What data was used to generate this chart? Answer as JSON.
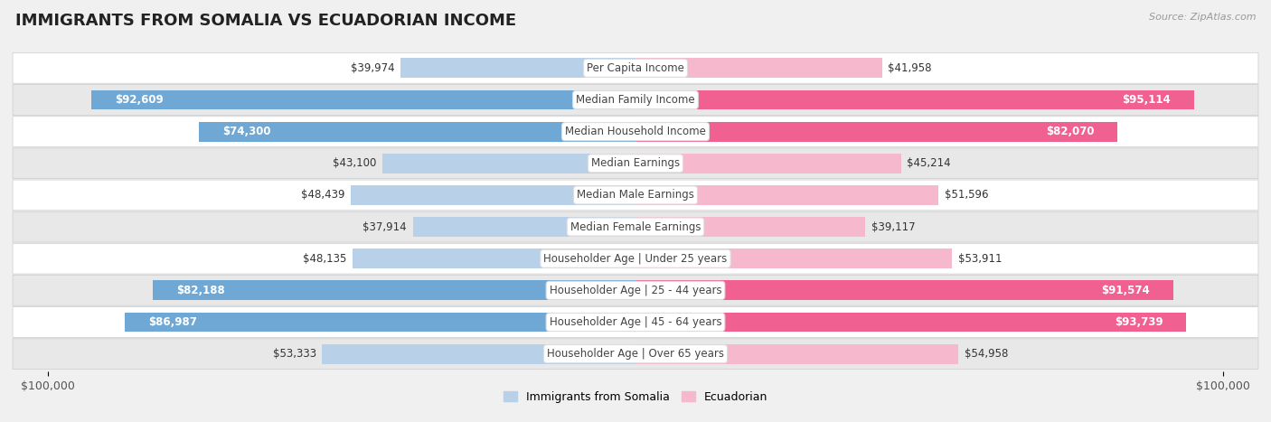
{
  "title": "IMMIGRANTS FROM SOMALIA VS ECUADORIAN INCOME",
  "source": "Source: ZipAtlas.com",
  "categories": [
    "Per Capita Income",
    "Median Family Income",
    "Median Household Income",
    "Median Earnings",
    "Median Male Earnings",
    "Median Female Earnings",
    "Householder Age | Under 25 years",
    "Householder Age | 25 - 44 years",
    "Householder Age | 45 - 64 years",
    "Householder Age | Over 65 years"
  ],
  "somalia_values": [
    39974,
    92609,
    74300,
    43100,
    48439,
    37914,
    48135,
    82188,
    86987,
    53333
  ],
  "ecuador_values": [
    41958,
    95114,
    82070,
    45214,
    51596,
    39117,
    53911,
    91574,
    93739,
    54958
  ],
  "somalia_labels": [
    "$39,974",
    "$92,609",
    "$74,300",
    "$43,100",
    "$48,439",
    "$37,914",
    "$48,135",
    "$82,188",
    "$86,987",
    "$53,333"
  ],
  "ecuador_labels": [
    "$41,958",
    "$95,114",
    "$82,070",
    "$45,214",
    "$51,596",
    "$39,117",
    "$53,911",
    "$91,574",
    "$93,739",
    "$54,958"
  ],
  "somalia_color_light": "#b8d0e8",
  "somalia_color_dark": "#6fa8d4",
  "ecuador_color_light": "#f5b8cc",
  "ecuador_color_dark": "#f06090",
  "inside_label_threshold": 60000,
  "max_value": 100000,
  "xlabel_left": "$100,000",
  "xlabel_right": "$100,000",
  "legend_somalia": "Immigrants from Somalia",
  "legend_ecuador": "Ecuadorian",
  "bg_color": "#f0f0f0",
  "row_bg_even": "#ffffff",
  "row_bg_odd": "#e8e8e8",
  "bar_height": 0.62,
  "title_fontsize": 13,
  "label_fontsize": 8.5,
  "category_fontsize": 8.5
}
